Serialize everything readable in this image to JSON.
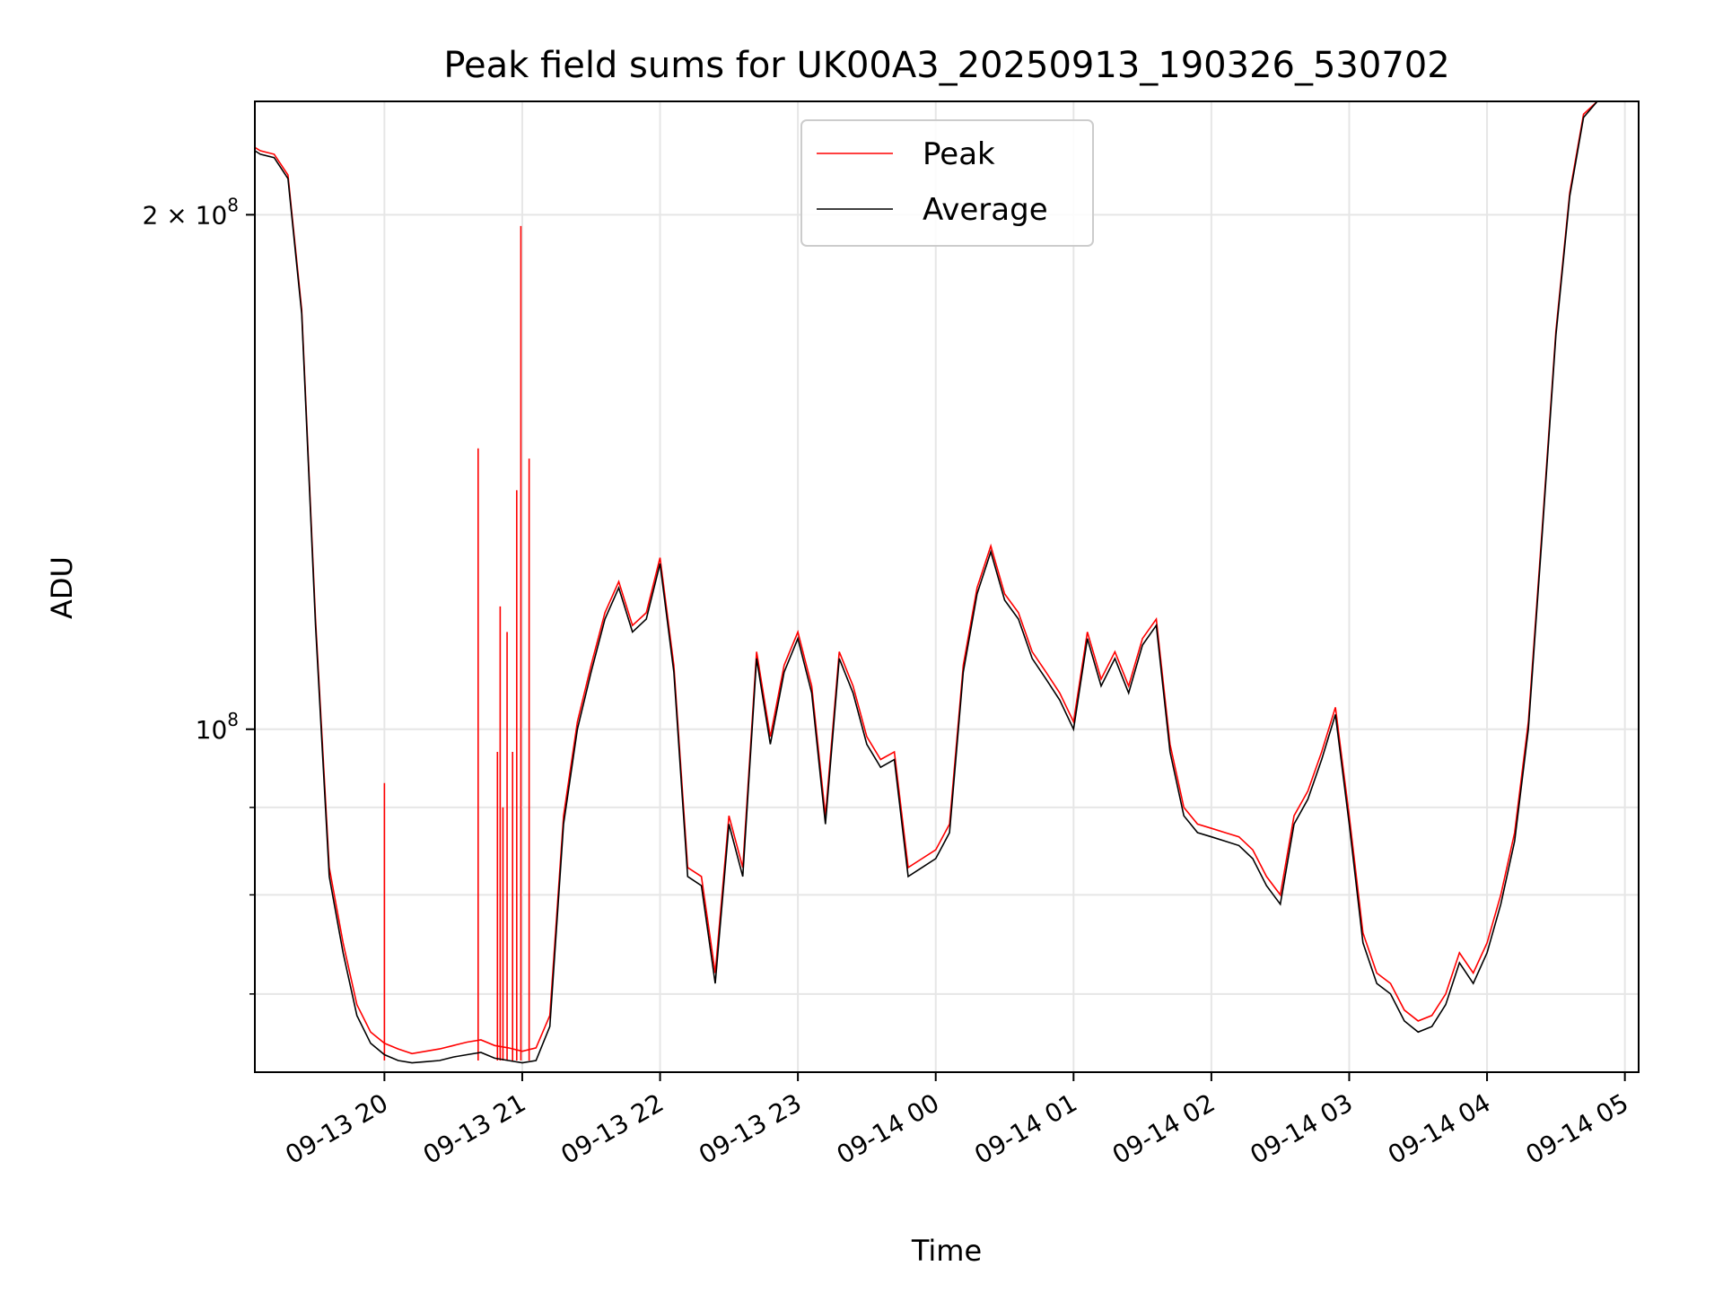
{
  "chart_data": {
    "type": "line",
    "title": "Peak field sums for UK00A3_20250913_190326_530702",
    "xlabel": "Time",
    "ylabel": "ADU",
    "yscale": "log",
    "ylim": [
      63000000,
      233000000
    ],
    "xlim_hours": [
      19.06,
      29.1
    ],
    "x_ticks": [
      {
        "h": 20,
        "label": "09-13 20"
      },
      {
        "h": 21,
        "label": "09-13 21"
      },
      {
        "h": 22,
        "label": "09-13 22"
      },
      {
        "h": 23,
        "label": "09-13 23"
      },
      {
        "h": 24,
        "label": "09-14 00"
      },
      {
        "h": 25,
        "label": "09-14 01"
      },
      {
        "h": 26,
        "label": "09-14 02"
      },
      {
        "h": 27,
        "label": "09-14 03"
      },
      {
        "h": 28,
        "label": "09-14 04"
      },
      {
        "h": 29,
        "label": "09-14 05"
      }
    ],
    "y_major_ticks": [
      {
        "value": 100000000,
        "base": "10",
        "exp": "8",
        "mant": ""
      },
      {
        "value": 200000000,
        "base": "10",
        "exp": "8",
        "mant": "2 × "
      }
    ],
    "y_minor_ticks": [
      60000000,
      70000000,
      80000000,
      90000000
    ],
    "grid": true,
    "legend": {
      "position": "upper center",
      "entries": [
        "Peak",
        "Average"
      ]
    },
    "colors": {
      "peak": "#ff0000",
      "average": "#000000",
      "grid": "#e6e6e6"
    },
    "series": [
      {
        "name": "Average",
        "x": [
          19.06,
          19.1,
          19.2,
          19.3,
          19.4,
          19.5,
          19.6,
          19.7,
          19.8,
          19.9,
          20.0,
          20.1,
          20.2,
          20.3,
          20.4,
          20.5,
          20.6,
          20.7,
          20.8,
          20.9,
          21.0,
          21.1,
          21.2,
          21.3,
          21.4,
          21.5,
          21.6,
          21.7,
          21.8,
          21.9,
          22.0,
          22.1,
          22.2,
          22.3,
          22.4,
          22.5,
          22.6,
          22.7,
          22.8,
          22.9,
          23.0,
          23.1,
          23.2,
          23.3,
          23.4,
          23.5,
          23.6,
          23.7,
          23.8,
          23.9,
          24.0,
          24.1,
          24.2,
          24.3,
          24.4,
          24.5,
          24.6,
          24.7,
          24.8,
          24.9,
          25.0,
          25.1,
          25.2,
          25.3,
          25.4,
          25.5,
          25.6,
          25.7,
          25.8,
          25.9,
          26.0,
          26.1,
          26.2,
          26.3,
          26.4,
          26.5,
          26.6,
          26.7,
          26.8,
          26.9,
          27.0,
          27.1,
          27.2,
          27.3,
          27.4,
          27.5,
          27.6,
          27.7,
          27.8,
          27.9,
          28.0,
          28.1,
          28.2,
          28.3,
          28.4,
          28.5,
          28.6,
          28.7,
          28.8,
          28.9,
          29.0,
          29.1
        ],
        "y": [
          218000000,
          217000000,
          216000000,
          210000000,
          175000000,
          115000000,
          82000000,
          74000000,
          68000000,
          65500000,
          64500000,
          64000000,
          63800000,
          63900000,
          64000000,
          64300000,
          64500000,
          64700000,
          64200000,
          64000000,
          63800000,
          64000000,
          67000000,
          88000000,
          100000000,
          108000000,
          116000000,
          121000000,
          114000000,
          116000000,
          125000000,
          108000000,
          82000000,
          81000000,
          71000000,
          88000000,
          82000000,
          110000000,
          98000000,
          108000000,
          113000000,
          105000000,
          88000000,
          110000000,
          105000000,
          98000000,
          95000000,
          96000000,
          82000000,
          83000000,
          84000000,
          87000000,
          108000000,
          120000000,
          127000000,
          119000000,
          116000000,
          110000000,
          107000000,
          104000000,
          100000000,
          113000000,
          106000000,
          110000000,
          105000000,
          112000000,
          115000000,
          97000000,
          89000000,
          87000000,
          86500000,
          86000000,
          85500000,
          84000000,
          81000000,
          79000000,
          88000000,
          91000000,
          96000000,
          102000000,
          88000000,
          75000000,
          71000000,
          70000000,
          67500000,
          66500000,
          67000000,
          69000000,
          73000000,
          71000000,
          74000000,
          79000000,
          86000000,
          100000000,
          130000000,
          170000000,
          205000000,
          228000000,
          233000000,
          233000000,
          233000000,
          233000000
        ]
      },
      {
        "name": "Peak",
        "x": [
          19.06,
          19.1,
          19.2,
          19.3,
          19.4,
          19.5,
          19.6,
          19.7,
          19.8,
          19.9,
          20.0,
          20.1,
          20.2,
          20.3,
          20.4,
          20.5,
          20.6,
          20.7,
          20.8,
          20.9,
          21.0,
          21.1,
          21.2,
          21.3,
          21.4,
          21.5,
          21.6,
          21.7,
          21.8,
          21.9,
          22.0,
          22.1,
          22.2,
          22.3,
          22.4,
          22.5,
          22.6,
          22.7,
          22.8,
          22.9,
          23.0,
          23.1,
          23.2,
          23.3,
          23.4,
          23.5,
          23.6,
          23.7,
          23.8,
          23.9,
          24.0,
          24.1,
          24.2,
          24.3,
          24.4,
          24.5,
          24.6,
          24.7,
          24.8,
          24.9,
          25.0,
          25.1,
          25.2,
          25.3,
          25.4,
          25.5,
          25.6,
          25.7,
          25.8,
          25.9,
          26.0,
          26.1,
          26.2,
          26.3,
          26.4,
          26.5,
          26.6,
          26.7,
          26.8,
          26.9,
          27.0,
          27.1,
          27.2,
          27.3,
          27.4,
          27.5,
          27.6,
          27.7,
          27.8,
          27.9,
          28.0,
          28.1,
          28.2,
          28.3,
          28.4,
          28.5,
          28.6,
          28.7,
          28.8,
          28.9,
          29.0,
          29.1
        ],
        "y": [
          219000000,
          218000000,
          217000000,
          211000000,
          176000000,
          116000000,
          83000000,
          75000000,
          69000000,
          66500000,
          65500000,
          65000000,
          64600000,
          64800000,
          65000000,
          65300000,
          65600000,
          65800000,
          65300000,
          65100000,
          64800000,
          65100000,
          68000000,
          89000000,
          101000000,
          109000000,
          117000000,
          122000000,
          115000000,
          117000000,
          126000000,
          109000000,
          83000000,
          82000000,
          72000000,
          89000000,
          83000000,
          111000000,
          99000000,
          109000000,
          114000000,
          106000000,
          89000000,
          111000000,
          106000000,
          99000000,
          96000000,
          97000000,
          83000000,
          84000000,
          85000000,
          88000000,
          109000000,
          121000000,
          128000000,
          120000000,
          117000000,
          111000000,
          108000000,
          105000000,
          101000000,
          114000000,
          107000000,
          111000000,
          106000000,
          113000000,
          116000000,
          98000000,
          90000000,
          88000000,
          87500000,
          87000000,
          86500000,
          85000000,
          82000000,
          80000000,
          89000000,
          92000000,
          97000000,
          103000000,
          89000000,
          76000000,
          72000000,
          71000000,
          68500000,
          67500000,
          68000000,
          70000000,
          74000000,
          72000000,
          75000000,
          80000000,
          87000000,
          101000000,
          131000000,
          171000000,
          206000000,
          229000000,
          233000000,
          233000000,
          233000000,
          233000000
        ]
      }
    ],
    "peak_spikes": [
      {
        "x": 20.0,
        "y": 93000000
      },
      {
        "x": 20.68,
        "y": 146000000
      },
      {
        "x": 20.82,
        "y": 97000000
      },
      {
        "x": 20.84,
        "y": 118000000
      },
      {
        "x": 20.86,
        "y": 90000000
      },
      {
        "x": 20.89,
        "y": 114000000
      },
      {
        "x": 20.93,
        "y": 97000000
      },
      {
        "x": 20.96,
        "y": 138000000
      },
      {
        "x": 20.99,
        "y": 197000000
      },
      {
        "x": 21.05,
        "y": 144000000
      }
    ]
  }
}
